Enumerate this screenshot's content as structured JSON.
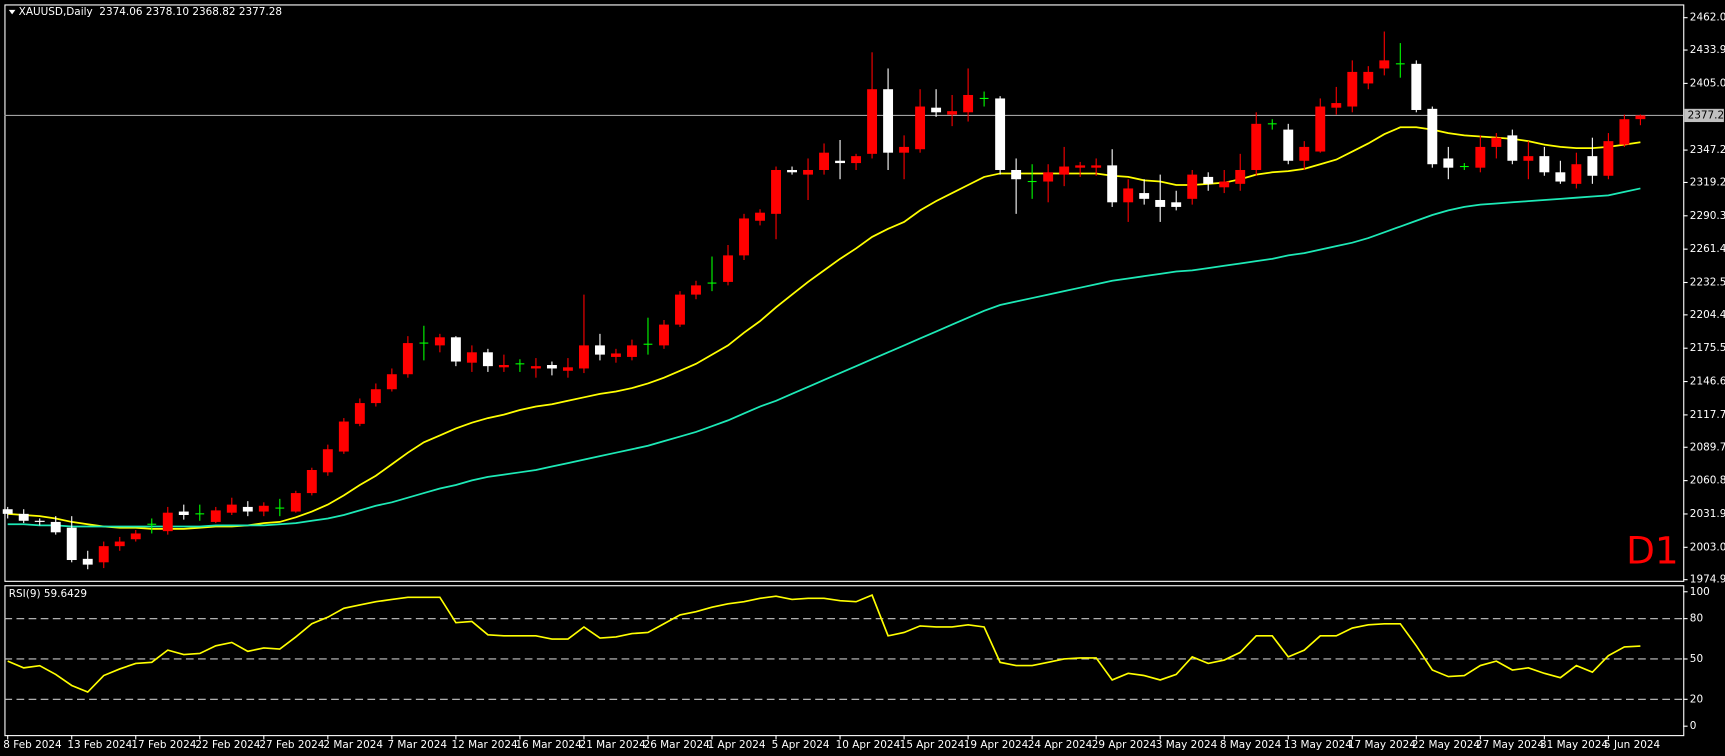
{
  "chart_data": [
    {
      "type": "candlestick",
      "title": "XAUUSD,Daily",
      "subtitle": "2374.06 2378.10 2368.82 2377.28",
      "annotation": "D1",
      "current_price": 2377.28,
      "up_color": "#ff0000",
      "down_color": "#ffffff",
      "doji_color": "#00ff00",
      "categories": [
        "8 Feb 2024",
        null,
        null,
        null,
        "13 Feb 2024",
        null,
        null,
        null,
        "17 Feb 2024",
        null,
        null,
        null,
        "22 Feb 2024",
        null,
        null,
        null,
        "27 Feb 2024",
        null,
        null,
        null,
        "2 Mar 2024",
        null,
        null,
        null,
        "7 Mar 2024",
        null,
        null,
        null,
        "12 Mar 2024",
        null,
        null,
        null,
        "16 Mar 2024",
        null,
        null,
        null,
        "21 Mar 2024",
        null,
        null,
        null,
        "26 Mar 2024",
        null,
        null,
        null,
        "1 Apr 2024",
        null,
        null,
        null,
        "5 Apr 2024",
        null,
        null,
        null,
        "10 Apr 2024",
        null,
        null,
        null,
        "15 Apr 2024",
        null,
        null,
        null,
        "19 Apr 2024",
        null,
        null,
        null,
        "24 Apr 2024",
        null,
        null,
        null,
        "29 Apr 2024",
        null,
        null,
        null,
        "3 May 2024",
        null,
        null,
        null,
        "8 May 2024",
        null,
        null,
        null,
        "13 May 2024",
        null,
        null,
        null,
        "17 May 2024",
        null,
        null,
        null,
        "22 May 2024",
        null,
        null,
        null,
        "27 May 2024",
        null,
        null,
        null,
        "31 May 2024",
        null,
        null,
        null,
        "5 Jun 2024",
        null,
        null
      ],
      "open": [
        2036,
        2032,
        2026,
        2025,
        2020,
        1993,
        1990,
        2004,
        2010,
        2023,
        2017,
        2034,
        2032,
        2025,
        2033,
        2038,
        2034,
        2037,
        2034,
        2050,
        2068,
        2086,
        2110,
        2128,
        2140,
        2153,
        2180,
        2178,
        2185,
        2163,
        2172,
        2159,
        2162,
        2158,
        2161,
        2156,
        2158,
        2178,
        2168,
        2168,
        2179,
        2178,
        2196,
        2222,
        2232,
        2233,
        2256,
        2286,
        2292,
        2330,
        2326,
        2330,
        2338,
        2336,
        2344,
        2400,
        2345,
        2348,
        2384,
        2378,
        2380,
        2392,
        2392,
        2330,
        2320,
        2320,
        2326,
        2332,
        2332,
        2334,
        2302,
        2310,
        2304,
        2302,
        2305,
        2324,
        2315,
        2318,
        2330,
        2370,
        2365,
        2338,
        2346,
        2384,
        2385,
        2405,
        2418,
        2422,
        2422,
        2383,
        2340,
        2333,
        2332,
        2350,
        2360,
        2338,
        2342,
        2328,
        2318,
        2342,
        2325,
        2352,
        2374.06
      ],
      "high": [
        2038,
        2036,
        2028,
        2030,
        2030,
        2000,
        2008,
        2012,
        2018,
        2028,
        2038,
        2040,
        2040,
        2038,
        2046,
        2043,
        2042,
        2045,
        2052,
        2072,
        2092,
        2115,
        2132,
        2145,
        2158,
        2186,
        2195,
        2188,
        2186,
        2178,
        2175,
        2170,
        2166,
        2167,
        2164,
        2167,
        2222,
        2188,
        2175,
        2183,
        2202,
        2200,
        2225,
        2234,
        2255,
        2265,
        2292,
        2296,
        2333,
        2333,
        2340,
        2353,
        2356,
        2344,
        2432,
        2418,
        2360,
        2400,
        2400,
        2395,
        2418,
        2398,
        2394,
        2340,
        2335,
        2335,
        2350,
        2337,
        2340,
        2348,
        2322,
        2322,
        2326,
        2312,
        2330,
        2328,
        2330,
        2344,
        2380,
        2374,
        2370,
        2355,
        2392,
        2402,
        2425,
        2420,
        2450,
        2440,
        2425,
        2385,
        2350,
        2336,
        2360,
        2362,
        2365,
        2355,
        2350,
        2338,
        2345,
        2358,
        2362,
        2378,
        2378.1
      ],
      "low": [
        2028,
        2024,
        2022,
        2014,
        1990,
        1984,
        1985,
        2000,
        2008,
        2015,
        2014,
        2027,
        2026,
        2024,
        2031,
        2030,
        2030,
        2030,
        2033,
        2048,
        2065,
        2084,
        2108,
        2125,
        2138,
        2150,
        2165,
        2172,
        2160,
        2155,
        2155,
        2155,
        2155,
        2150,
        2152,
        2150,
        2154,
        2165,
        2163,
        2165,
        2170,
        2175,
        2194,
        2218,
        2225,
        2230,
        2252,
        2282,
        2270,
        2326,
        2304,
        2326,
        2322,
        2330,
        2340,
        2330,
        2322,
        2345,
        2376,
        2368,
        2372,
        2385,
        2326,
        2292,
        2305,
        2302,
        2316,
        2324,
        2325,
        2298,
        2285,
        2300,
        2285,
        2295,
        2300,
        2312,
        2310,
        2312,
        2325,
        2365,
        2335,
        2330,
        2345,
        2378,
        2380,
        2400,
        2412,
        2410,
        2380,
        2332,
        2322,
        2330,
        2328,
        2340,
        2335,
        2322,
        2325,
        2318,
        2314,
        2318,
        2322,
        2350,
        2368.82
      ],
      "close": [
        2032,
        2026,
        2025,
        2016,
        1992,
        1988,
        2004,
        2008,
        2015,
        2023,
        2033,
        2031,
        2032,
        2035,
        2040,
        2034,
        2039,
        2037,
        2050,
        2070,
        2088,
        2112,
        2128,
        2140,
        2153,
        2180,
        2180,
        2185,
        2164,
        2172,
        2160,
        2161,
        2162,
        2160,
        2158,
        2159,
        2178,
        2170,
        2171,
        2178,
        2179,
        2196,
        2222,
        2230,
        2232,
        2256,
        2288,
        2293,
        2330,
        2328,
        2330,
        2345,
        2336,
        2342,
        2400,
        2345,
        2350,
        2385,
        2380,
        2381,
        2395,
        2392,
        2330,
        2322,
        2320,
        2328,
        2333,
        2334,
        2334,
        2302,
        2314,
        2305,
        2298,
        2298,
        2326,
        2318,
        2320,
        2330,
        2370,
        2370,
        2338,
        2350,
        2385,
        2388,
        2415,
        2415,
        2425,
        2422,
        2382,
        2335,
        2332,
        2333,
        2350,
        2358,
        2338,
        2342,
        2328,
        2320,
        2335,
        2325,
        2355,
        2374,
        2377.28
      ],
      "lines": [
        {
          "color": "#ffff00",
          "values": [
            2032,
            2031,
            2030,
            2028,
            2025,
            2023,
            2021,
            2020,
            2020,
            2019,
            2019,
            2019,
            2020,
            2021,
            2021,
            2022,
            2024,
            2025,
            2029,
            2034,
            2040,
            2048,
            2057,
            2065,
            2075,
            2085,
            2094,
            2100,
            2106,
            2111,
            2115,
            2118,
            2122,
            2125,
            2127,
            2130,
            2133,
            2136,
            2138,
            2141,
            2145,
            2150,
            2156,
            2162,
            2170,
            2178,
            2189,
            2199,
            2211,
            2222,
            2233,
            2243,
            2253,
            2262,
            2272,
            2279,
            2285,
            2295,
            2303,
            2310,
            2317,
            2324,
            2327,
            2327,
            2327,
            2327,
            2327,
            2327,
            2327,
            2325,
            2324,
            2321,
            2320,
            2317,
            2317,
            2318,
            2319,
            2322,
            2326,
            2328,
            2329,
            2331,
            2335,
            2339,
            2346,
            2353,
            2361,
            2367,
            2367,
            2365,
            2362,
            2360,
            2359,
            2358,
            2357,
            2355,
            2352,
            2350,
            2349,
            2349,
            2350,
            2352,
            2354
          ]
        },
        {
          "color": "#1de9b6",
          "values": [
            2023,
            2023,
            2022,
            2022,
            2021,
            2021,
            2021,
            2021,
            2021,
            2021,
            2021,
            2021,
            2021,
            2022,
            2022,
            2022,
            2022,
            2023,
            2024,
            2026,
            2028,
            2031,
            2035,
            2039,
            2042,
            2046,
            2050,
            2054,
            2057,
            2061,
            2064,
            2066,
            2068,
            2070,
            2073,
            2076,
            2079,
            2082,
            2085,
            2088,
            2091,
            2095,
            2099,
            2103,
            2108,
            2113,
            2119,
            2125,
            2130,
            2136,
            2142,
            2148,
            2154,
            2160,
            2166,
            2172,
            2178,
            2184,
            2190,
            2196,
            2202,
            2208,
            2213,
            2216,
            2219,
            2222,
            2225,
            2228,
            2231,
            2234,
            2236,
            2238,
            2240,
            2242,
            2243,
            2245,
            2247,
            2249,
            2251,
            2253,
            2256,
            2258,
            2261,
            2264,
            2267,
            2271,
            2276,
            2281,
            2286,
            2291,
            2295,
            2298,
            2300,
            2301,
            2302,
            2303,
            2304,
            2305,
            2306,
            2307,
            2308,
            2311,
            2314
          ]
        }
      ],
      "ylim": [
        1974,
        2473.5
      ],
      "yticks": [
        {
          "value": 2462,
          "label": "2462.00"
        },
        2433.95,
        2405.05,
        2347.25,
        {
          "value": 2319.2,
          "label": "2319.20"
        },
        {
          "value": 2290.3,
          "label": "2290.30"
        },
        {
          "value": 2261.4,
          "label": "2261.40"
        },
        {
          "value": 2232.5,
          "label": "2232.50"
        },
        2204.45,
        2175.55,
        2146.65,
        2117.75,
        {
          "value": 2089.7,
          "label": "2089.70"
        },
        {
          "value": 2060.8,
          "label": "2060.80"
        },
        {
          "value": 2031.9,
          "label": "2031.90"
        },
        {
          "value": 2003,
          "label": "2003.00"
        },
        1974.95
      ]
    },
    {
      "type": "line",
      "title": "RSI(9) 59.6429",
      "series": [
        {
          "color": "#ffff00",
          "values": [
            48.4,
            43.4,
            45,
            38.5,
            30.3,
            25.4,
            37.7,
            42.6,
            46.7,
            47.5,
            56.6,
            53.3,
            54.1,
            59.8,
            62.3,
            55.7,
            58.2,
            57.4,
            66.4,
            76.2,
            81.1,
            87.7,
            90.2,
            92.6,
            94.3,
            95.9,
            95.9,
            95.9,
            77,
            77.9,
            68,
            67.2,
            67.2,
            67.2,
            64.8,
            64.8,
            73.8,
            65.6,
            66.4,
            68.9,
            69.7,
            76.2,
            82.8,
            85.2,
            88.5,
            91,
            92.6,
            95.1,
            96.7,
            94.3,
            95.1,
            95.1,
            93.4,
            92.6,
            97.5,
            67.2,
            69.7,
            74.6,
            73.8,
            73.8,
            75.4,
            73.8,
            47.5,
            45.1,
            45.1,
            47.5,
            50,
            50.8,
            50.8,
            34.4,
            39.3,
            37.7,
            34.4,
            38.5,
            51.6,
            46.7,
            49.2,
            54.9,
            67.2,
            67.2,
            51.6,
            56.6,
            67.2,
            67.2,
            73,
            75.4,
            76.2,
            76.2,
            59.8,
            41.8,
            36.9,
            37.7,
            45.1,
            48.4,
            41.8,
            43.4,
            39.3,
            36.1,
            45.1,
            40.2,
            52.5,
            59,
            59.6429
          ]
        }
      ],
      "ylim": [
        -6.6,
        104.9
      ],
      "yticks": [
        100,
        80,
        50,
        20,
        0
      ],
      "levels": [
        80,
        50,
        20
      ]
    }
  ]
}
